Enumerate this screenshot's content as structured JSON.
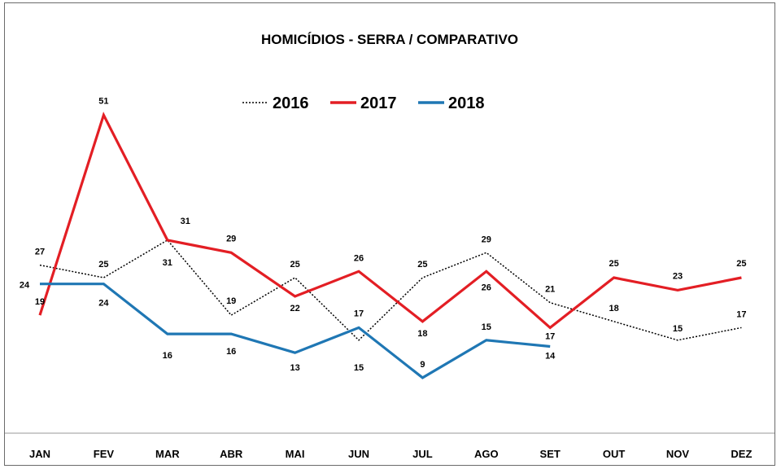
{
  "chart_data": {
    "type": "line",
    "title": "HOMICÍDIOS - SERRA  / COMPARATIVO",
    "categories": [
      "JAN",
      "FEV",
      "MAR",
      "ABR",
      "MAI",
      "JUN",
      "JUL",
      "AGO",
      "SET",
      "OUT",
      "NOV",
      "DEZ"
    ],
    "series": [
      {
        "name": "2016",
        "color": "#000000",
        "style": "dotted",
        "values": [
          27,
          25,
          31,
          19,
          25,
          15,
          25,
          29,
          21,
          18,
          15,
          17
        ]
      },
      {
        "name": "2017",
        "color": "#e31e24",
        "style": "solid",
        "values": [
          19,
          51,
          31,
          29,
          22,
          26,
          18,
          26,
          17,
          25,
          23,
          25
        ]
      },
      {
        "name": "2018",
        "color": "#1f77b4",
        "style": "solid",
        "values": [
          24,
          24,
          16,
          16,
          13,
          17,
          9,
          15,
          14,
          null,
          null,
          null
        ]
      }
    ],
    "xlabel": "",
    "ylabel": "",
    "ylim": [
      0,
      55
    ],
    "grid": false,
    "legend": "top-center"
  }
}
